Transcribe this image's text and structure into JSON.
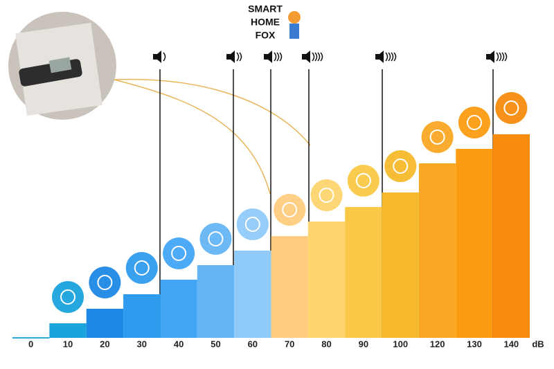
{
  "chart_data": {
    "type": "bar",
    "categories": [
      "0",
      "10",
      "20",
      "30",
      "40",
      "50",
      "60",
      "70",
      "80",
      "90",
      "100",
      "120",
      "130",
      "140"
    ],
    "values": [
      0,
      10,
      20,
      30,
      40,
      50,
      60,
      70,
      80,
      90,
      100,
      120,
      130,
      140
    ],
    "colors": [
      "#29a9e0",
      "#1aa3dc",
      "#1e88e5",
      "#2f9bef",
      "#42a5f5",
      "#64b5f6",
      "#90caf9",
      "#ffcc80",
      "#fdd46e",
      "#f9c846",
      "#f7b92c",
      "#f9a825",
      "#fb9c12",
      "#f68b0d"
    ],
    "unit": "dB",
    "ylim": [
      0,
      150
    ]
  },
  "logo": {
    "lines": [
      "SMART",
      "HOME",
      "FOX"
    ]
  }
}
